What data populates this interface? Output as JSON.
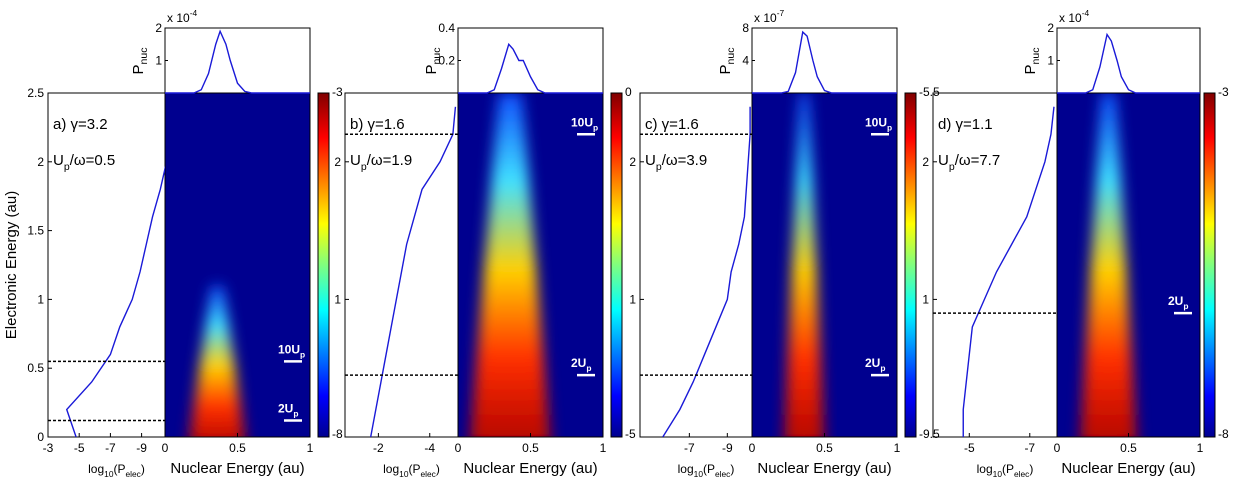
{
  "y_axis_label": "Electronic Energy (au)",
  "x_label_elec": [
    "log",
    "10",
    "(P",
    "elec",
    ")"
  ],
  "x_label_nuc": "Nuclear Energy (au)",
  "p_nuc_label": [
    "P",
    "nuc"
  ],
  "marker_labels": {
    "ten": [
      "10U",
      "p"
    ],
    "two": [
      "2U",
      "p"
    ]
  },
  "panels": [
    {
      "label": "a) γ=3.2",
      "ratio": [
        "U",
        "p",
        "/ω=0.5"
      ],
      "elec": {
        "xlim": [
          -3,
          -10.5
        ],
        "xticks": [
          -3,
          -5,
          -7,
          -9
        ],
        "ylim": [
          0,
          2.5
        ],
        "yticks": [
          0,
          0.5,
          1,
          1.5,
          2,
          2.5
        ],
        "energy": [
          0,
          0.2,
          0.4,
          0.6,
          0.8,
          1.0,
          1.2,
          1.4,
          1.6,
          1.8,
          2.0,
          2.2,
          2.4
        ],
        "log_p": [
          -4.8,
          -4.2,
          -5.8,
          -7.0,
          -7.6,
          -8.4,
          -8.9,
          -9.3,
          -9.7,
          -10.2,
          -10.6,
          -10.8,
          -11
        ]
      },
      "nuc": {
        "xlim": [
          0,
          1
        ],
        "xticks": [
          0,
          0.5,
          1
        ],
        "ylim": [
          0,
          2
        ],
        "yticks": [
          1,
          2
        ],
        "exponent": [
          "x 10",
          "-4"
        ],
        "x": [
          0,
          0.2,
          0.25,
          0.3,
          0.35,
          0.38,
          0.42,
          0.45,
          0.5,
          0.55,
          0.6,
          1
        ],
        "values": [
          0,
          0,
          0.1,
          0.6,
          1.5,
          1.9,
          1.5,
          1.0,
          0.3,
          0.05,
          0,
          0
        ]
      },
      "colorbar": {
        "lim": [
          -8,
          -3
        ],
        "ticks": [
          -3,
          -8
        ]
      },
      "ten_up": 0.55,
      "two_up": 0.12
    },
    {
      "label": "b) γ=1.6",
      "ratio": [
        "U",
        "p",
        "/ω=1.9"
      ],
      "elec": {
        "xlim": [
          -0.7,
          -5.1
        ],
        "xticks": [
          -2,
          -4
        ],
        "ylim": [
          0,
          2.5
        ],
        "yticks": [
          1,
          2
        ],
        "energy": [
          0,
          0.2,
          0.4,
          0.6,
          0.8,
          1.0,
          1.2,
          1.4,
          1.6,
          1.8,
          2.0,
          2.2,
          2.4
        ],
        "log_p": [
          -1.7,
          -1.9,
          -2.1,
          -2.3,
          -2.5,
          -2.7,
          -2.9,
          -3.1,
          -3.4,
          -3.7,
          -4.4,
          -4.9,
          -5.0
        ]
      },
      "nuc": {
        "xlim": [
          0,
          1
        ],
        "xticks": [
          0,
          0.5,
          1
        ],
        "ylim": [
          0,
          0.4
        ],
        "yticks": [
          0.2,
          0.4
        ],
        "x": [
          0,
          0.2,
          0.25,
          0.3,
          0.35,
          0.38,
          0.42,
          0.45,
          0.5,
          0.55,
          0.6,
          1
        ],
        "values": [
          0,
          0,
          0.02,
          0.15,
          0.3,
          0.27,
          0.2,
          0.2,
          0.1,
          0.02,
          0,
          0
        ]
      },
      "colorbar": {
        "lim": [
          -5,
          0
        ],
        "ticks": [
          0,
          -5
        ]
      },
      "ten_up": 2.2,
      "two_up": 0.45
    },
    {
      "label": "c) γ=1.6",
      "ratio": [
        "U",
        "p",
        "/ω=3.9"
      ],
      "elec": {
        "xlim": [
          -4.4,
          -10.3
        ],
        "xticks": [
          -7,
          -9
        ],
        "ylim": [
          0,
          2.5
        ],
        "yticks": [
          1,
          2
        ],
        "energy": [
          0,
          0.2,
          0.4,
          0.6,
          0.8,
          1.0,
          1.2,
          1.4,
          1.6,
          1.8,
          2.0,
          2.2,
          2.4
        ],
        "log_p": [
          -5.6,
          -6.5,
          -7.2,
          -7.8,
          -8.4,
          -9.0,
          -9.2,
          -9.6,
          -9.9,
          -10.0,
          -10.1,
          -10.2,
          -10.2
        ]
      },
      "nuc": {
        "xlim": [
          0,
          1
        ],
        "xticks": [
          0,
          0.5,
          1
        ],
        "ylim": [
          0,
          8
        ],
        "yticks": [
          4,
          8
        ],
        "exponent": [
          "x 10",
          "-7"
        ],
        "x": [
          0,
          0.2,
          0.25,
          0.3,
          0.35,
          0.38,
          0.42,
          0.45,
          0.5,
          0.55,
          0.6,
          1
        ],
        "values": [
          0,
          0,
          0.2,
          2.5,
          7.5,
          7.0,
          4.0,
          2.0,
          0.3,
          0,
          0,
          0
        ]
      },
      "colorbar": {
        "lim": [
          -9.5,
          -5.5
        ],
        "ticks": [
          -5.5,
          -9.5
        ]
      },
      "ten_up": 2.2,
      "two_up": 0.45
    },
    {
      "label": "d) γ=1.1",
      "ratio": [
        "U",
        "p",
        "/ω=7.7"
      ],
      "elec": {
        "xlim": [
          -3.8,
          -7.9
        ],
        "xticks": [
          -5,
          -7
        ],
        "ylim": [
          0,
          2.5
        ],
        "yticks": [
          1,
          2
        ],
        "energy": [
          0,
          0.2,
          0.4,
          0.6,
          0.8,
          1.0,
          1.2,
          1.4,
          1.6,
          1.8,
          2.0,
          2.2,
          2.4
        ],
        "log_p": [
          -4.8,
          -4.8,
          -4.9,
          -5.0,
          -5.1,
          -5.5,
          -5.9,
          -6.4,
          -6.9,
          -7.2,
          -7.5,
          -7.7,
          -7.8
        ]
      },
      "nuc": {
        "xlim": [
          0,
          1
        ],
        "xticks": [
          0,
          0.5,
          1
        ],
        "ylim": [
          0,
          2
        ],
        "yticks": [
          1,
          2
        ],
        "exponent": [
          "x 10",
          "-4"
        ],
        "x": [
          0,
          0.2,
          0.25,
          0.3,
          0.35,
          0.38,
          0.42,
          0.45,
          0.5,
          0.55,
          0.6,
          1
        ],
        "values": [
          0,
          0,
          0.1,
          0.8,
          1.8,
          1.6,
          1.0,
          0.5,
          0.1,
          0,
          0,
          0
        ]
      },
      "colorbar": {
        "lim": [
          -8,
          -3
        ],
        "ticks": [
          -3,
          -8
        ]
      },
      "two_up": 0.9
    }
  ]
}
